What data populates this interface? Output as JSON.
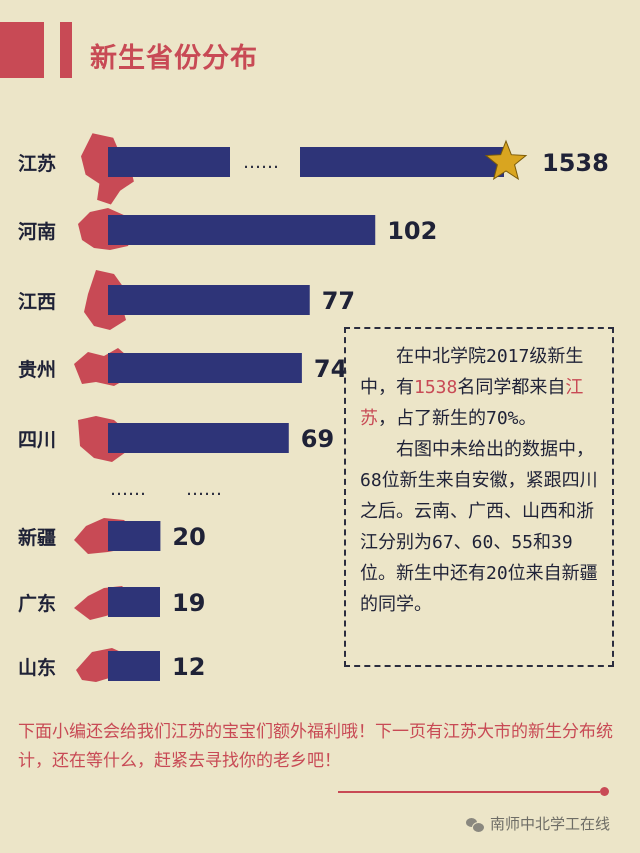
{
  "title": "新生省份分布",
  "chart_data": {
    "type": "bar",
    "orientation": "horizontal",
    "categories": [
      "江苏",
      "河南",
      "江西",
      "贵州",
      "四川",
      "新疆",
      "广东",
      "山东"
    ],
    "values": [
      1538,
      102,
      77,
      74,
      69,
      20,
      19,
      12
    ],
    "value_labels": [
      "1538",
      "102",
      "77",
      "74",
      "69",
      "20",
      "19",
      "12"
    ],
    "axis_break_after_index": 4,
    "first_bar_broken": true,
    "highlight_index": 0,
    "highlight_marker": "star",
    "break_dots": "……",
    "colors": {
      "bar": "#2e3478",
      "map": "#c84a55",
      "star": "#d9a520"
    }
  },
  "info_box": {
    "p1_a": "在中北学院2017级新生中，有",
    "p1_b": "1538",
    "p1_c": "名同学都来自",
    "p1_d": "江苏",
    "p1_e": "，占了新生的70%。",
    "p2": "右图中未给出的数据中，68位新生来自安徽，紧跟四川之后。云南、广西、山西和浙江分别为67、60、55和39位。新生中还有20位来自新疆的同学。"
  },
  "footer_text": "下面小编还会给我们江苏的宝宝们额外福利哦！下一页有江苏大市的新生分布统计，还在等什么，赶紧去寻找你的老乡吧！",
  "watermark": "南师中北学工在线",
  "colors": {
    "background": "#ece5c8",
    "accent": "#c84a55",
    "text": "#1f2237"
  }
}
